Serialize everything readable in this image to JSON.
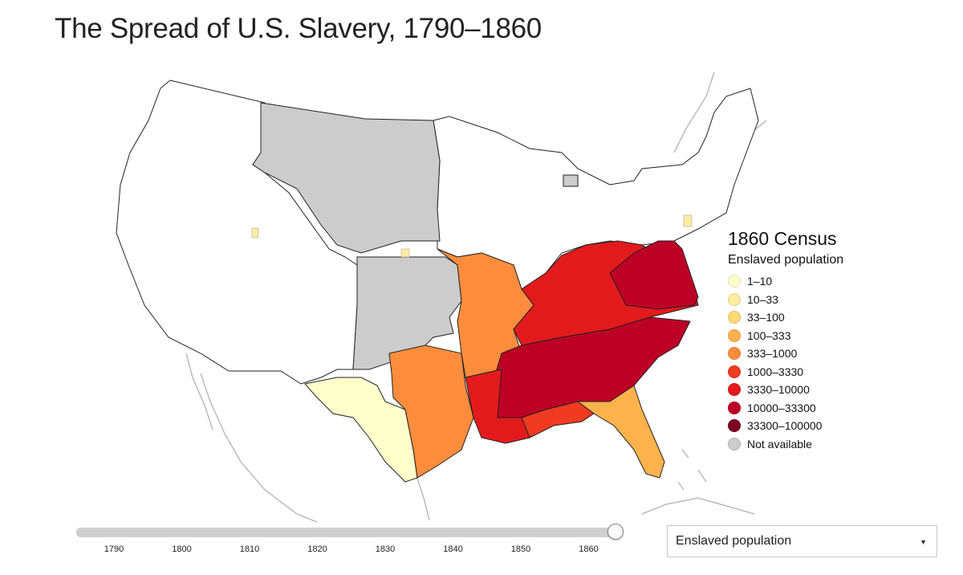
{
  "title": "The Spread of U.S. Slavery, 1790–1860",
  "legend": {
    "title": "1860 Census",
    "subtitle": "Enslaved population",
    "items": [
      {
        "label": "1–10",
        "color": "#ffffcc"
      },
      {
        "label": "10–33",
        "color": "#ffeda0"
      },
      {
        "label": "33–100",
        "color": "#fed976"
      },
      {
        "label": "100–333",
        "color": "#feb24c"
      },
      {
        "label": "333–1000",
        "color": "#fd8d3c"
      },
      {
        "label": "1000–3330",
        "color": "#f03b20"
      },
      {
        "label": "3330–10000",
        "color": "#e31a1c"
      },
      {
        "label": "10000–33300",
        "color": "#bd0026"
      },
      {
        "label": "33300–100000",
        "color": "#800026"
      },
      {
        "label": "Not available",
        "color": "#cccccc"
      }
    ]
  },
  "slider": {
    "years": [
      "1790",
      "1800",
      "1810",
      "1820",
      "1830",
      "1840",
      "1850",
      "1860"
    ],
    "selected": "1860"
  },
  "select": {
    "value": "Enslaved population"
  },
  "map": {
    "highlight_colors": {
      "deep_south": "#bd0026",
      "upper_south": "#e31a1c",
      "border": "#fd8d3c",
      "frontier": "#feb24c",
      "sparse": "#ffffcc",
      "unavailable": "#cccccc",
      "free": "#ffffff",
      "outline": "#222222",
      "neighbor": "#bbbbbb"
    }
  }
}
